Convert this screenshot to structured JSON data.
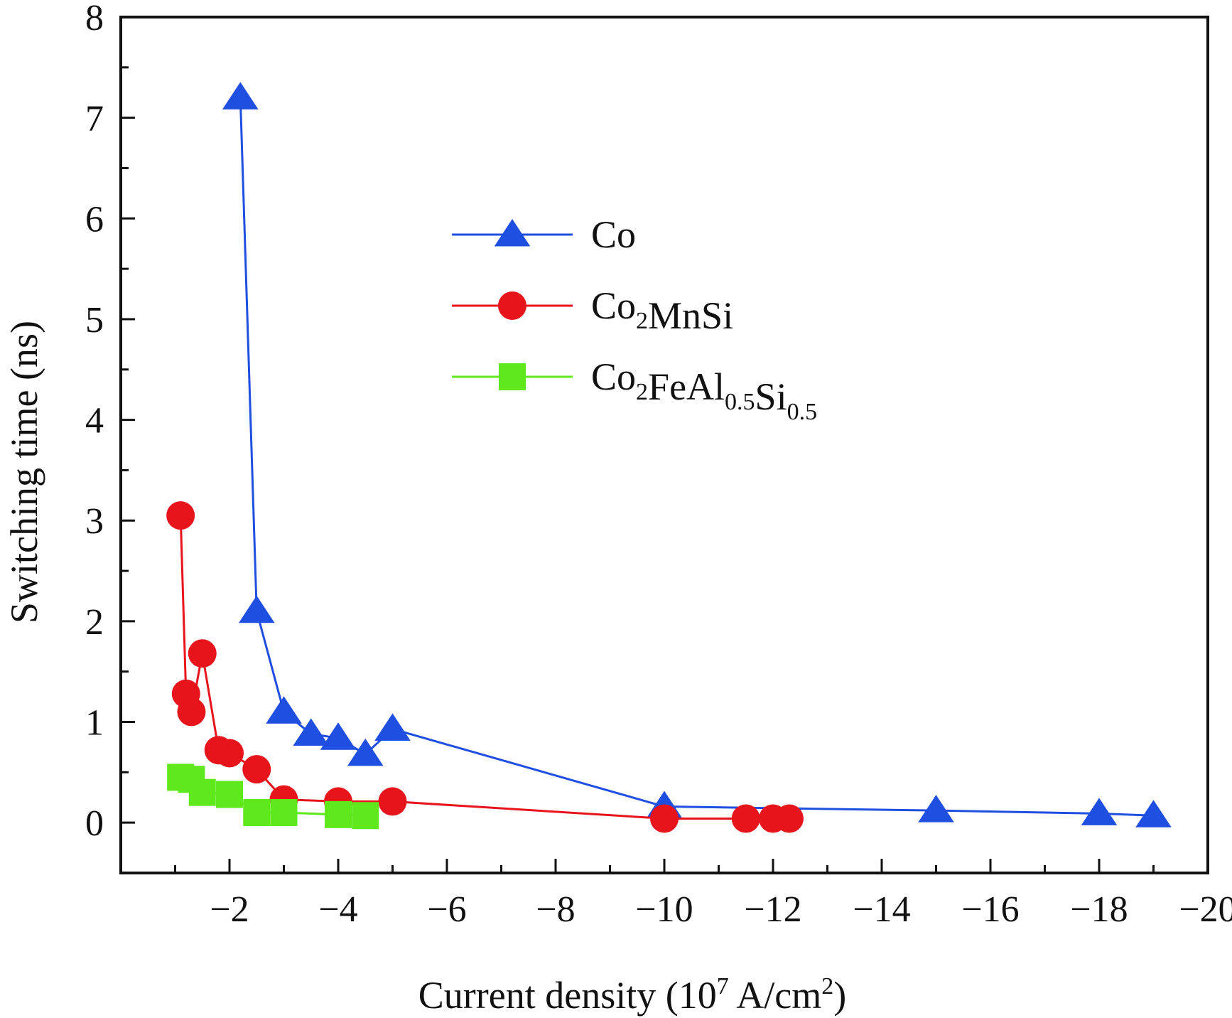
{
  "chart_data": {
    "type": "line",
    "title": "",
    "xlabel": "Current density (10^7 A/cm^2)",
    "xlabel_parts": {
      "main": "Current density (10",
      "exp1": "7",
      "mid": " A/cm",
      "exp2": "2",
      "end": ")"
    },
    "ylabel": "Switching time (ns)",
    "xlim": [
      -0.0,
      -20
    ],
    "ylim": [
      -0.5,
      8
    ],
    "x_axis_reversed": true,
    "x_ticks": [
      -2,
      -4,
      -6,
      -8,
      -10,
      -12,
      -14,
      -16,
      -18,
      -20
    ],
    "x_tick_labels": [
      "−2",
      "−4",
      "−6",
      "−8",
      "−10",
      "−12",
      "−14",
      "−16",
      "−18",
      "−20"
    ],
    "y_ticks": [
      0,
      1,
      2,
      3,
      4,
      5,
      6,
      7,
      8
    ],
    "y_tick_labels": [
      "0",
      "1",
      "2",
      "3",
      "4",
      "5",
      "6",
      "7",
      "8"
    ],
    "grid": false,
    "legend_position": "upper-center",
    "series": [
      {
        "name": "Co",
        "name_parts": [
          {
            "t": "Co",
            "sub": false
          }
        ],
        "color": "#1f4fe0",
        "marker": "triangle",
        "x": [
          -2.2,
          -2.5,
          -3.0,
          -3.5,
          -4.0,
          -4.5,
          -5.0,
          -10.0,
          -15.0,
          -18.0,
          -19.0
        ],
        "y": [
          7.2,
          2.1,
          1.1,
          0.88,
          0.84,
          0.68,
          0.93,
          0.16,
          0.12,
          0.09,
          0.07
        ]
      },
      {
        "name": "Co2MnSi",
        "name_parts": [
          {
            "t": "Co",
            "sub": false
          },
          {
            "t": "2",
            "sub": true
          },
          {
            "t": "MnSi",
            "sub": false
          }
        ],
        "color": "#e8141c",
        "marker": "circle",
        "x": [
          -1.1,
          -1.2,
          -1.3,
          -1.5,
          -1.8,
          -2.0,
          -2.5,
          -3.0,
          -4.0,
          -5.0,
          -10.0,
          -11.5,
          -12.0,
          -12.3
        ],
        "y": [
          3.05,
          1.28,
          1.1,
          1.68,
          0.72,
          0.69,
          0.53,
          0.23,
          0.21,
          0.21,
          0.04,
          0.04,
          0.04,
          0.04
        ]
      },
      {
        "name": "Co2FeAl0.5Si0.5",
        "name_parts": [
          {
            "t": "Co",
            "sub": false
          },
          {
            "t": "2",
            "sub": true
          },
          {
            "t": "FeAl",
            "sub": false
          },
          {
            "t": "0.5",
            "sub": true
          },
          {
            "t": "Si",
            "sub": false
          },
          {
            "t": "0.5",
            "sub": true
          }
        ],
        "color": "#5fe81c",
        "marker": "square",
        "x": [
          -1.1,
          -1.3,
          -1.5,
          -2.0,
          -2.5,
          -3.0,
          -4.0,
          -4.5
        ],
        "y": [
          0.45,
          0.43,
          0.3,
          0.28,
          0.1,
          0.1,
          0.08,
          0.07
        ]
      }
    ]
  }
}
